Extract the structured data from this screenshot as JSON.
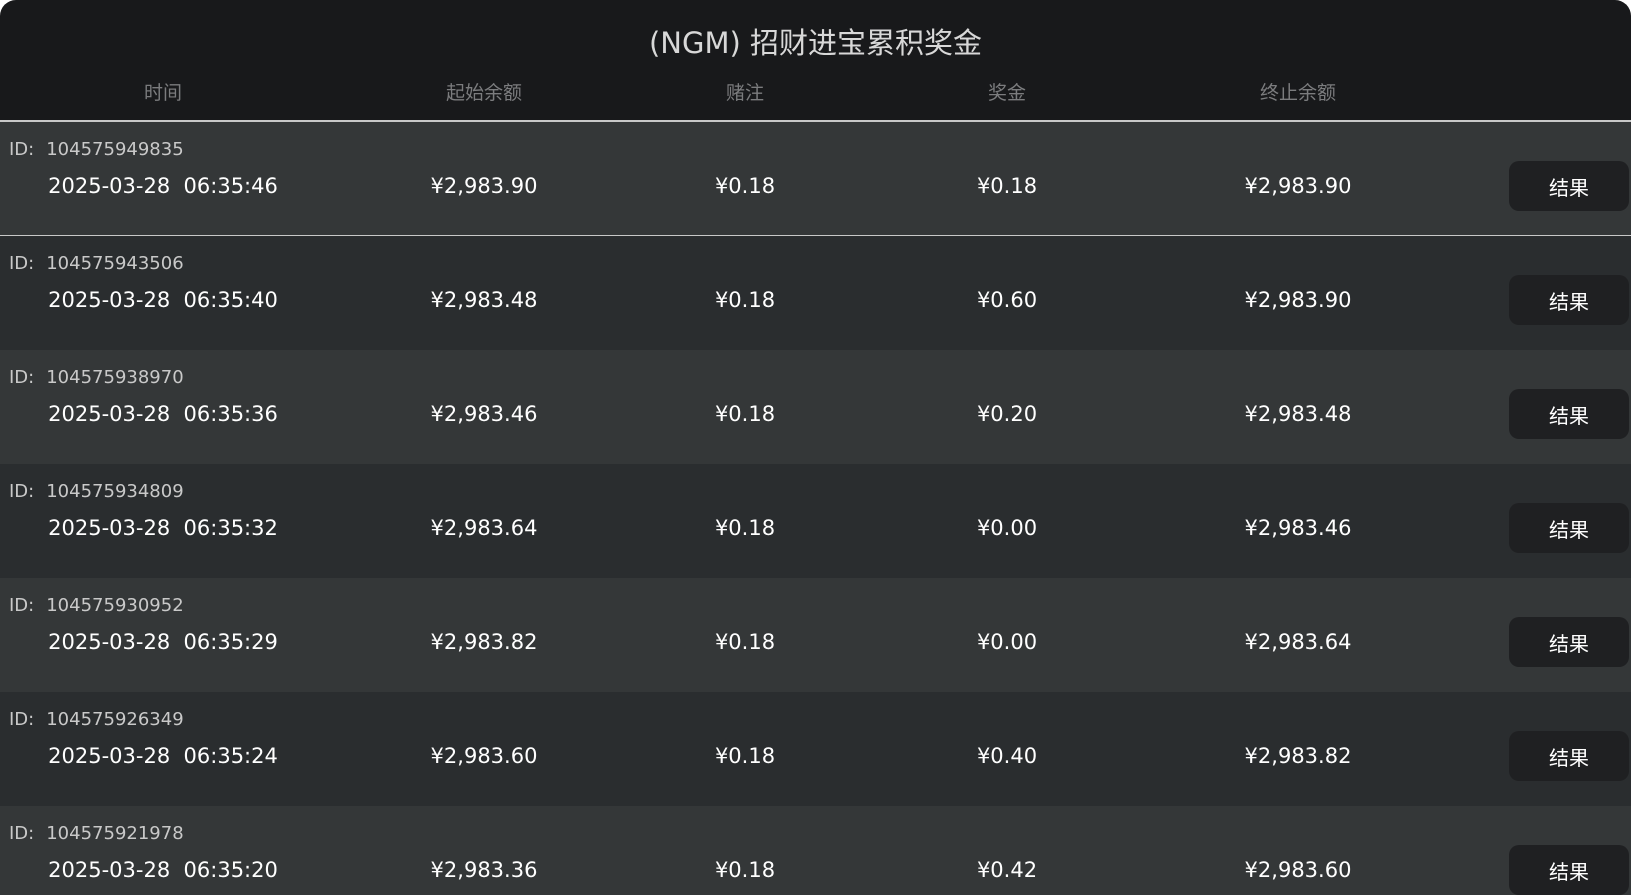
{
  "title": "(NGM) 招财进宝累积奖金",
  "columns": [
    "时间",
    "起始余额",
    "赌注",
    "奖金",
    "终止余额"
  ],
  "id_label": "ID:",
  "button_label": "结果",
  "rows": [
    {
      "id": "104575949835",
      "time": "2025-03-28  06:35:46",
      "start": "¥2,983.90",
      "bet": "¥0.18",
      "prize": "¥0.18",
      "end": "¥2,983.90"
    },
    {
      "id": "104575943506",
      "time": "2025-03-28  06:35:40",
      "start": "¥2,983.48",
      "bet": "¥0.18",
      "prize": "¥0.60",
      "end": "¥2,983.90"
    },
    {
      "id": "104575938970",
      "time": "2025-03-28  06:35:36",
      "start": "¥2,983.46",
      "bet": "¥0.18",
      "prize": "¥0.20",
      "end": "¥2,983.48"
    },
    {
      "id": "104575934809",
      "time": "2025-03-28  06:35:32",
      "start": "¥2,983.64",
      "bet": "¥0.18",
      "prize": "¥0.00",
      "end": "¥2,983.46"
    },
    {
      "id": "104575930952",
      "time": "2025-03-28  06:35:29",
      "start": "¥2,983.82",
      "bet": "¥0.18",
      "prize": "¥0.00",
      "end": "¥2,983.64"
    },
    {
      "id": "104575926349",
      "time": "2025-03-28  06:35:24",
      "start": "¥2,983.60",
      "bet": "¥0.18",
      "prize": "¥0.40",
      "end": "¥2,983.82"
    },
    {
      "id": "104575921978",
      "time": "2025-03-28  06:35:20",
      "start": "¥2,983.36",
      "bet": "¥0.18",
      "prize": "¥0.42",
      "end": "¥2,983.60"
    }
  ]
}
